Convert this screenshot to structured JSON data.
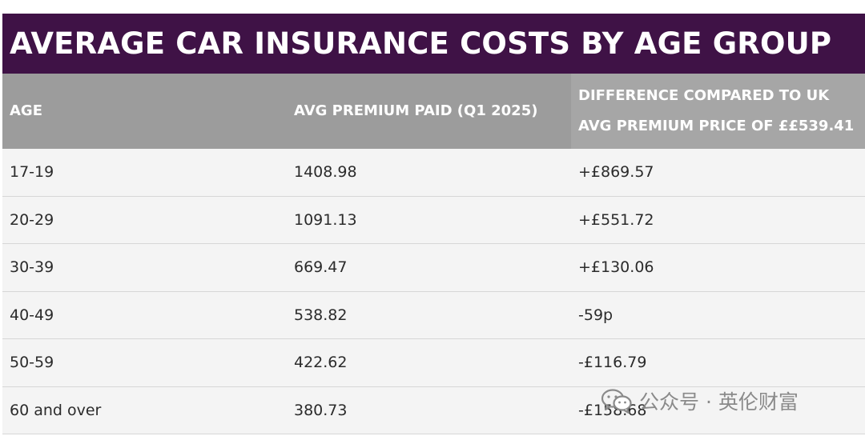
{
  "title": "AVERAGE CAR INSURANCE COSTS BY AGE GROUP",
  "table": {
    "headers": {
      "age": "AGE",
      "premium": "AVG PREMIUM PAID (Q1 2025)",
      "difference_line1": "DIFFERENCE COMPARED TO UK",
      "difference_line2": "AVG PREMIUM PRICE OF ££539.41"
    },
    "rows": [
      {
        "age": "17-19",
        "premium": "1408.98",
        "difference": "+£869.57"
      },
      {
        "age": "20-29",
        "premium": "1091.13",
        "difference": "+£551.72"
      },
      {
        "age": "30-39",
        "premium": "669.47",
        "difference": "+£130.06"
      },
      {
        "age": "40-49",
        "premium": "538.82",
        "difference": "-59p"
      },
      {
        "age": "50-59",
        "premium": "422.62",
        "difference": "-£116.79"
      },
      {
        "age": "60 and over",
        "premium": "380.73",
        "difference": "-£158.68"
      }
    ]
  },
  "watermark": {
    "text": "公众号 · 英伦财富",
    "icon": "wechat-icon"
  },
  "colors": {
    "title_background": "#3f1246",
    "header_background": "#9c9c9c",
    "row_background": "#f4f4f4"
  }
}
